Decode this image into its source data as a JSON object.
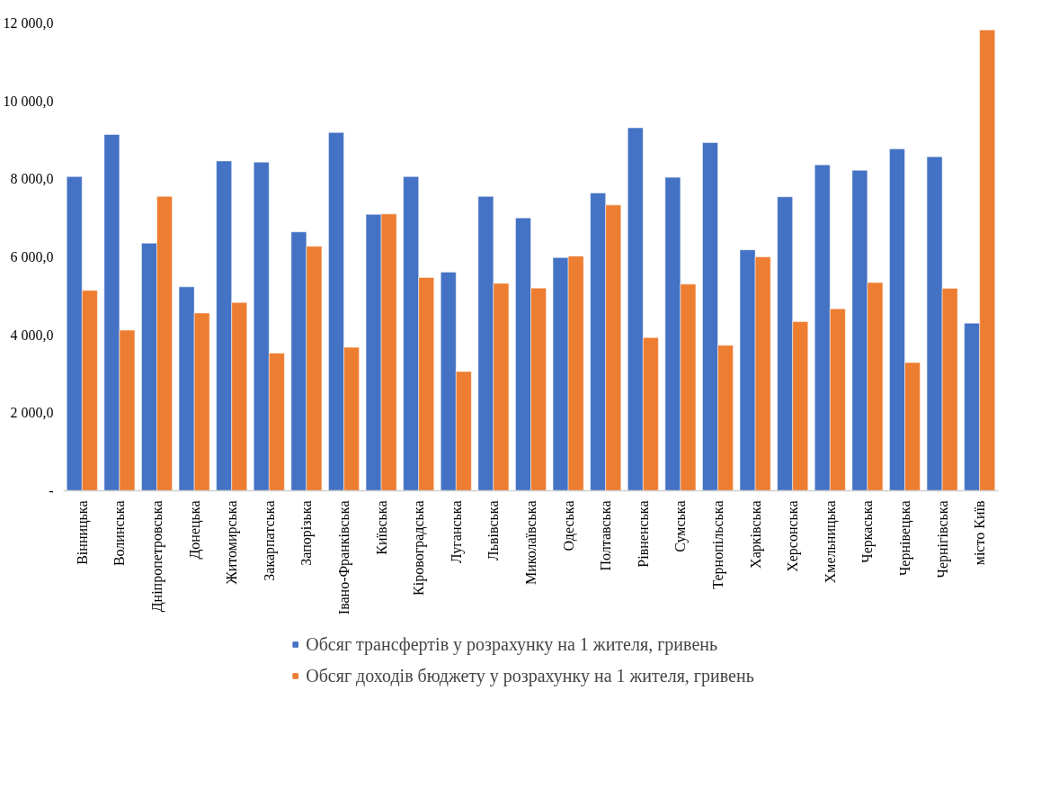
{
  "chart_data": {
    "type": "bar",
    "categories": [
      "Вінницька",
      "Волинська",
      "Дніпропетровська",
      "Донецька",
      "Житомирська",
      "Закарпатська",
      "Запорізька",
      "Івано-Франківська",
      "Київська",
      "Кіровоградська",
      "Луганська",
      "Львівська",
      "Миколаївська",
      "Одеська",
      "Полтавська",
      "Рівненська",
      "Сумська",
      "Тернопільська",
      "Харківська",
      "Херсонська",
      "Хмельницька",
      "Черкаська",
      "Чернівецька",
      "Чернігівська",
      "місто Київ"
    ],
    "series": [
      {
        "name": "Обсяг трансфертів у розрахунку на 1 жителя, гривень",
        "color": "#4472c4",
        "values": [
          8060,
          9140,
          6350,
          5230,
          8460,
          8430,
          6640,
          9190,
          7090,
          8060,
          5610,
          7550,
          7000,
          5980,
          7640,
          9310,
          8040,
          8930,
          6180,
          7540,
          8360,
          8220,
          8770,
          8570,
          4300
        ]
      },
      {
        "name": "Обсяг доходів бюджету у розрахунку на 1 жителя, гривень",
        "color": "#ed7d31",
        "values": [
          5140,
          4120,
          7550,
          4560,
          4830,
          3530,
          6270,
          3680,
          7100,
          5470,
          3060,
          5320,
          5200,
          6020,
          7330,
          3930,
          5300,
          3730,
          6000,
          4340,
          4670,
          5340,
          3290,
          5190,
          11820
        ]
      }
    ],
    "ylim": [
      0,
      12000
    ],
    "yticks": [
      {
        "value": 0,
        "label": "-"
      },
      {
        "value": 2000,
        "label": "2 000,0"
      },
      {
        "value": 4000,
        "label": "4 000,0"
      },
      {
        "value": 6000,
        "label": "6 000,0"
      },
      {
        "value": 8000,
        "label": "8 000,0"
      },
      {
        "value": 10000,
        "label": "10 000,0"
      },
      {
        "value": 12000,
        "label": "12 000,0"
      }
    ],
    "legend": "bottom"
  }
}
